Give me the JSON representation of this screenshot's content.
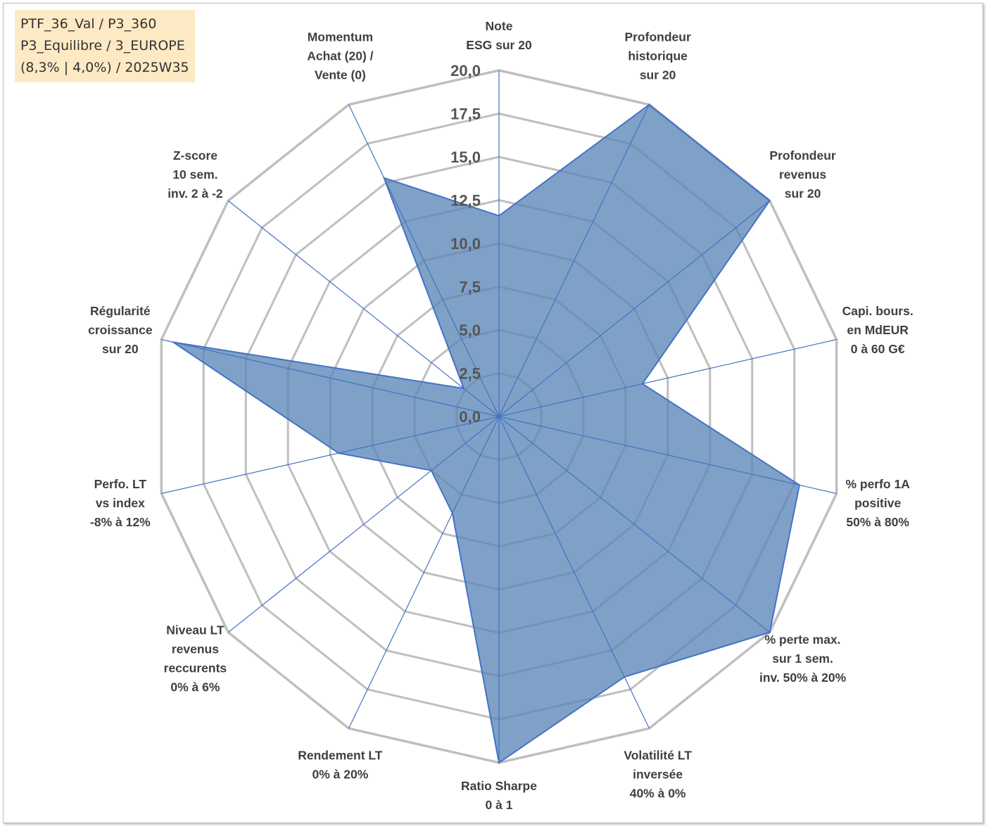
{
  "info": {
    "line1": "PTF_36_Val / P3_360",
    "line2": "P3_Equilibre / 3_EUROPE",
    "line3": "(8,3% | 4,0%) / 2025W35"
  },
  "chart_data": {
    "type": "radar",
    "rmin": 0,
    "rmax": 20,
    "ticks": [
      "0,0",
      "2,5",
      "5,0",
      "7,5",
      "10,0",
      "12,5",
      "15,0",
      "17,5",
      "20,0"
    ],
    "tick_values": [
      0,
      2.5,
      5,
      7.5,
      10,
      12.5,
      15,
      17.5,
      20
    ],
    "categories": [
      [
        "Note",
        "ESG sur 20"
      ],
      [
        "Profondeur",
        "historique",
        "sur 20"
      ],
      [
        "Profondeur",
        "revenus",
        "sur 20"
      ],
      [
        "Capi. bours.",
        "en MdEUR",
        "0 à 60 G€"
      ],
      [
        "% perfo 1A",
        "positive",
        "50% à 80%"
      ],
      [
        "% perte max.",
        "sur 1 sem.",
        "inv. 50% à 20%"
      ],
      [
        "Volatilité LT",
        "inversée",
        "40% à 0%"
      ],
      [
        "Ratio Sharpe",
        "0 à 1"
      ],
      [
        "Rendement LT",
        "0% à 20%"
      ],
      [
        "Niveau LT",
        "revenus",
        "reccurents",
        "0% à 6%"
      ],
      [
        "Perfo. LT",
        "vs index",
        "-8% à 12%"
      ],
      [
        "Régularité",
        "croissance",
        "sur 20"
      ],
      [
        "Z-score",
        "10 sem.",
        "inv. 2 à -2"
      ],
      [
        "Momentum",
        "Achat (20) /",
        "Vente (0)"
      ]
    ],
    "series": [
      {
        "values": [
          11.6,
          20,
          20,
          8.5,
          17.8,
          20,
          16.7,
          20,
          6.2,
          5.0,
          9.5,
          19.3,
          2.6,
          15.3
        ]
      }
    ],
    "colors": {
      "fill": "#5b87b7",
      "stroke": "#4472c4",
      "grid": "#bfbfbf",
      "spoke": "#4472c4"
    },
    "grid": true
  }
}
